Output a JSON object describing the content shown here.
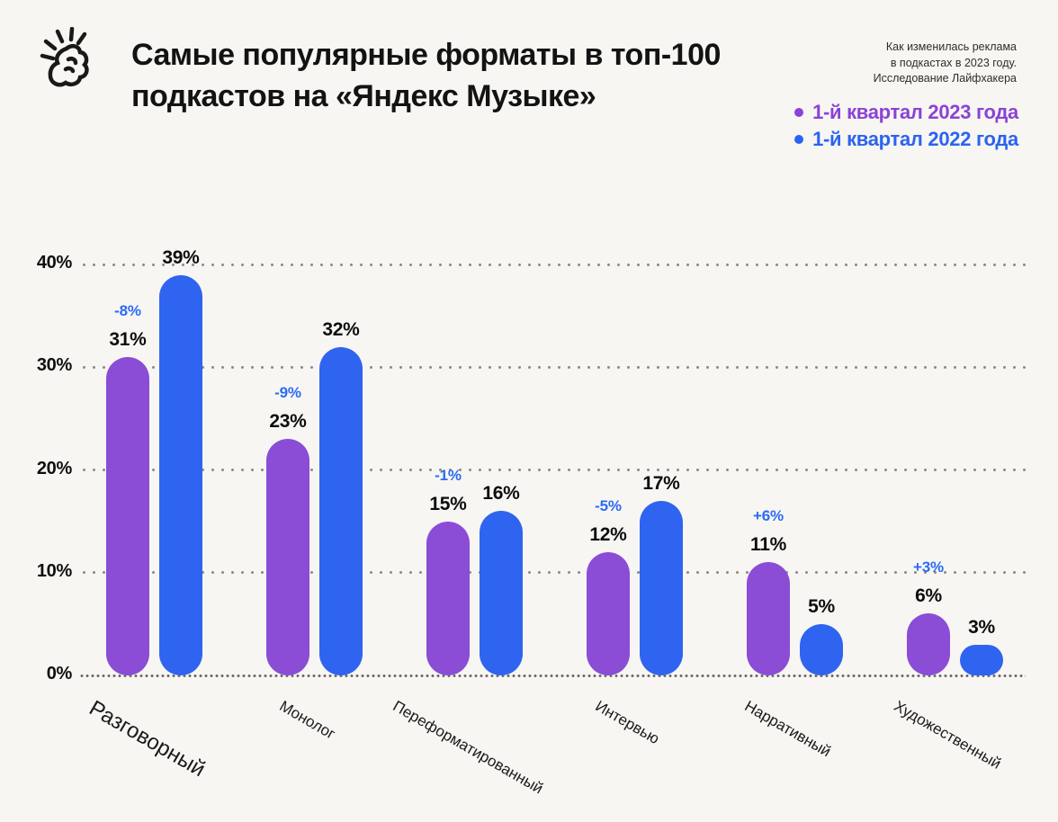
{
  "page": {
    "background": "#f7f6f2"
  },
  "header": {
    "title_line1": "Самые популярные форматы в топ-100",
    "title_line2": "подкастов на «Яндекс Музыке»",
    "source_note": [
      "Как изменилась реклама",
      "в подкастах в 2023 году.",
      "Исследование Лайфхакера"
    ]
  },
  "legend": {
    "items": [
      {
        "label": "1-й квартал 2023 года",
        "color": "#8b42d6"
      },
      {
        "label": "1-й квартал 2022 года",
        "color": "#2b63f1"
      }
    ]
  },
  "icons": {
    "logo": "snap-fingers-icon"
  },
  "colors": {
    "background": "#f7f6f2",
    "purple_bar": "#8b4cd6",
    "blue_bar": "#2f64f0",
    "change_label": "#2b6bf5",
    "grid_dot": "#8e8c88",
    "text": "#131313"
  },
  "chart_data": {
    "type": "bar",
    "title": "Самые популярные форматы в топ-100 подкастов на «Яндекс Музыке»",
    "subtitle": "Как изменилась реклама в подкастах в 2023 году. Исследование Лайфхакера",
    "categories": [
      "Разговорный",
      "Монолог",
      "Переформатированный",
      "Интервью",
      "Нарративный",
      "Художественный"
    ],
    "series": [
      {
        "name": "1-й квартал 2023 года",
        "color": "#8b4cd6",
        "values": [
          31,
          23,
          15,
          12,
          11,
          6
        ]
      },
      {
        "name": "1-й квартал 2022 года",
        "color": "#2f64f0",
        "values": [
          39,
          32,
          16,
          17,
          5,
          3
        ]
      }
    ],
    "change_labels": [
      "-8%",
      "-9%",
      "-1%",
      "-5%",
      "+6%",
      "+3%"
    ],
    "change_label_color": "#2b6bf5",
    "value_suffix": "%",
    "yticks": [
      0,
      10,
      20,
      30,
      40
    ],
    "ylim": [
      0,
      42
    ],
    "grid": "dotted-horizontal",
    "legend_position": "top-right",
    "xlabel": "",
    "ylabel": ""
  }
}
